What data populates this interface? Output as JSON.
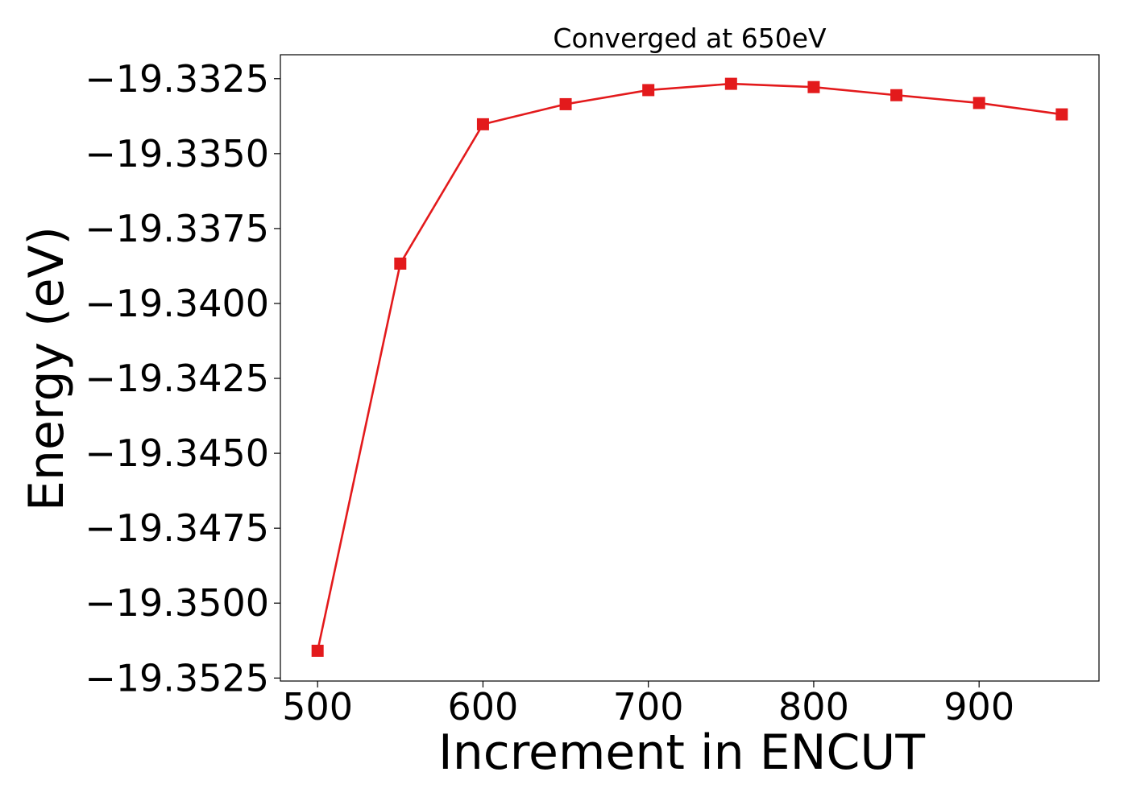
{
  "chart_data": {
    "type": "line",
    "title": "Converged at 650eV",
    "xlabel": "Increment in ENCUT",
    "ylabel": "Energy (eV)",
    "x": [
      500,
      550,
      600,
      650,
      700,
      750,
      800,
      850,
      900,
      950
    ],
    "series": [
      {
        "values": [
          -19.35159,
          -19.33867,
          -19.33402,
          -19.33335,
          -19.33288,
          -19.33267,
          -19.33278,
          -19.33305,
          -19.33331,
          -19.33369
        ],
        "color": "#e31a1c",
        "marker": "square"
      }
    ],
    "xlim": [
      477.5,
      972.5
    ],
    "ylim": [
      -19.3526,
      -19.3317
    ],
    "xticks": [
      500,
      600,
      700,
      800,
      900
    ],
    "xtick_labels": [
      "500",
      "600",
      "700",
      "800",
      "900"
    ],
    "yticks": [
      -19.3325,
      -19.335,
      -19.3375,
      -19.34,
      -19.3425,
      -19.345,
      -19.3475,
      -19.35,
      -19.3525
    ],
    "ytick_labels": [
      "−19.3325",
      "−19.3350",
      "−19.3375",
      "−19.3400",
      "−19.3425",
      "−19.3450",
      "−19.3475",
      "−19.3500",
      "−19.3525"
    ],
    "grid": false,
    "legend": "none"
  }
}
